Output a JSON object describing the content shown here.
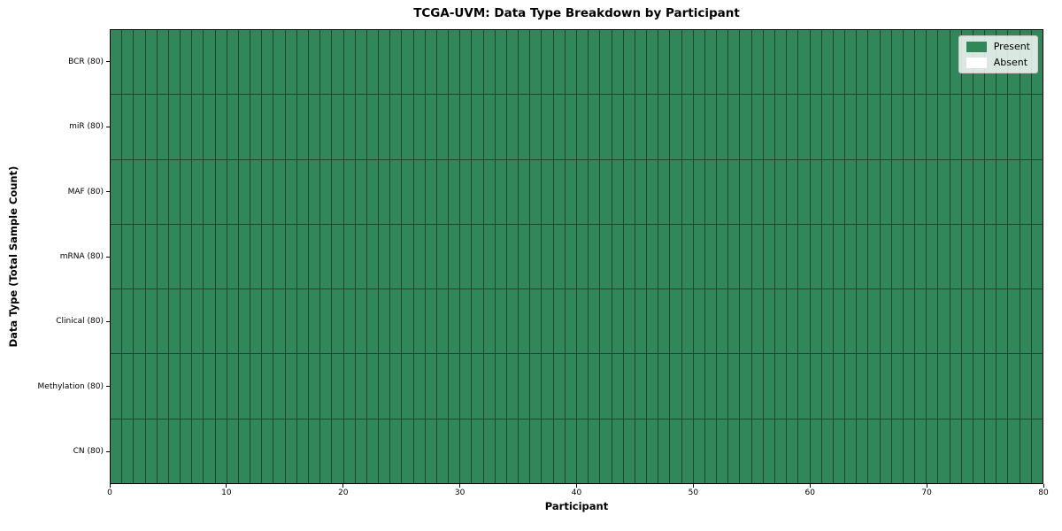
{
  "chart_data": {
    "type": "heatmap",
    "title": "TCGA-UVM: Data Type Breakdown by Participant",
    "xlabel": "Participant",
    "ylabel": "Data Type (Total Sample Count)",
    "x_range": [
      0,
      80
    ],
    "x_ticks": [
      0,
      10,
      20,
      30,
      40,
      50,
      60,
      70,
      80
    ],
    "n_participants": 80,
    "rows": [
      {
        "label": "BCR (80)",
        "data_type": "BCR",
        "total_samples": 80,
        "present_count": 80,
        "absent_count": 0
      },
      {
        "label": "miR (80)",
        "data_type": "miR",
        "total_samples": 80,
        "present_count": 80,
        "absent_count": 0
      },
      {
        "label": "MAF (80)",
        "data_type": "MAF",
        "total_samples": 80,
        "present_count": 80,
        "absent_count": 0
      },
      {
        "label": "mRNA (80)",
        "data_type": "mRNA",
        "total_samples": 80,
        "present_count": 80,
        "absent_count": 0
      },
      {
        "label": "Clinical (80)",
        "data_type": "Clinical",
        "total_samples": 80,
        "present_count": 80,
        "absent_count": 0
      },
      {
        "label": "Methylation (80)",
        "data_type": "Methylation",
        "total_samples": 80,
        "present_count": 80,
        "absent_count": 0
      },
      {
        "label": "CN (80)",
        "data_type": "CN",
        "total_samples": 80,
        "present_count": 80,
        "absent_count": 0
      }
    ],
    "legend": {
      "position": "upper-right",
      "entries": [
        {
          "label": "Present",
          "value": 1,
          "color": "#31875a"
        },
        {
          "label": "Absent",
          "value": 0,
          "color": "#ffffff"
        }
      ]
    },
    "colors": {
      "present": "#31875a",
      "absent": "#ffffff",
      "cell_edge": "#1d4631",
      "spine": "#000000",
      "background": "#ffffff"
    },
    "grid": false
  }
}
